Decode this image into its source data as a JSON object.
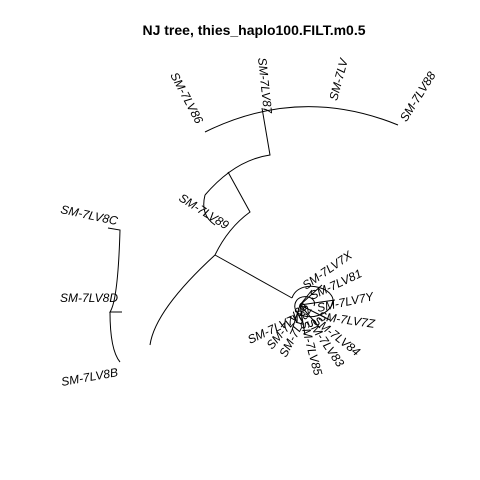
{
  "title": "NJ tree,  thies_haplo100.FILT.m0.5",
  "tips": {
    "lv86": "SM-7LV86",
    "lv87": "SM-7LV87",
    "lv8x": "SM-7LV",
    "lv88": "SM-7LV88",
    "lv89": "SM-7LV89",
    "lv8c": "SM-7LV8C",
    "lv8d": "SM-7LV8D",
    "lv8b": "SM-7LV8B",
    "lv7x": "SM-7LV7X",
    "lv81": "SM-7LV81",
    "lv7y": "SM-7LV7Y",
    "lv7z": "SM-7LV7Z",
    "lv84": "SM-7LV84",
    "lv83": "SM-7LV83",
    "lv85": "SM-7LV85",
    "lv82": "SM-7LV82",
    "lv80": "SM-7LV80",
    "lv7w": "SM-7LV7W"
  }
}
